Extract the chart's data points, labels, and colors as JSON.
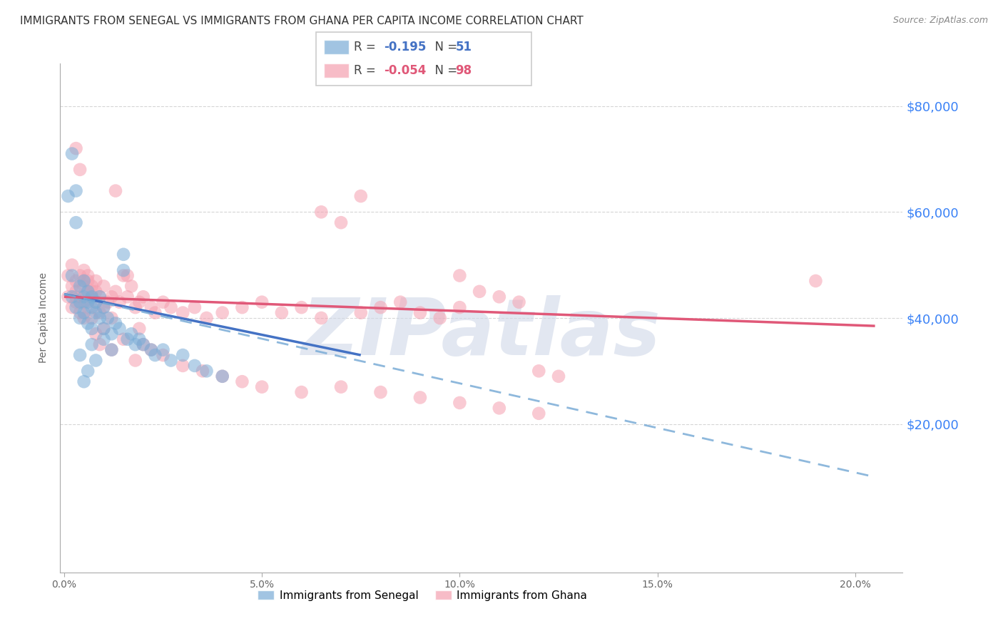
{
  "title": "IMMIGRANTS FROM SENEGAL VS IMMIGRANTS FROM GHANA PER CAPITA INCOME CORRELATION CHART",
  "source": "Source: ZipAtlas.com",
  "ylabel": "Per Capita Income",
  "legend_labels_bottom": [
    "Immigrants from Senegal",
    "Immigrants from Ghana"
  ],
  "y_tick_labels": [
    "$20,000",
    "$40,000",
    "$60,000",
    "$80,000"
  ],
  "y_tick_values": [
    20000,
    40000,
    60000,
    80000
  ],
  "y_tick_color": "#3b82f6",
  "x_tick_labels": [
    "0.0%",
    "5.0%",
    "10.0%",
    "15.0%",
    "20.0%"
  ],
  "x_tick_values": [
    0.0,
    0.05,
    0.1,
    0.15,
    0.2
  ],
  "xlim": [
    -0.001,
    0.212
  ],
  "ylim": [
    -8000,
    88000
  ],
  "background_color": "#ffffff",
  "grid_color": "#cccccc",
  "watermark": "ZIPatlas",
  "watermark_color": "#d0d8e8",
  "senegal_color": "#7aacd6",
  "ghana_color": "#f5a0b0",
  "title_fontsize": 11,
  "source_fontsize": 9,
  "senegal_line_color": "#4472c4",
  "ghana_line_color": "#e05878",
  "dashed_line_color": "#7aacd6",
  "senegal_scatter": {
    "x": [
      0.001,
      0.002,
      0.002,
      0.003,
      0.003,
      0.004,
      0.004,
      0.004,
      0.005,
      0.005,
      0.005,
      0.006,
      0.006,
      0.006,
      0.007,
      0.007,
      0.007,
      0.008,
      0.008,
      0.009,
      0.009,
      0.01,
      0.01,
      0.011,
      0.012,
      0.013,
      0.014,
      0.015,
      0.016,
      0.017,
      0.018,
      0.019,
      0.02,
      0.022,
      0.023,
      0.025,
      0.027,
      0.03,
      0.033,
      0.036,
      0.04,
      0.002,
      0.003,
      0.004,
      0.005,
      0.006,
      0.007,
      0.008,
      0.01,
      0.012,
      0.015
    ],
    "y": [
      63000,
      44000,
      48000,
      64000,
      42000,
      43000,
      46000,
      40000,
      44000,
      47000,
      41000,
      45000,
      43000,
      39000,
      44000,
      42000,
      38000,
      43000,
      41000,
      44000,
      40000,
      42000,
      38000,
      40000,
      37000,
      39000,
      38000,
      52000,
      36000,
      37000,
      35000,
      36000,
      35000,
      34000,
      33000,
      34000,
      32000,
      33000,
      31000,
      30000,
      29000,
      71000,
      58000,
      33000,
      28000,
      30000,
      35000,
      32000,
      36000,
      34000,
      49000
    ]
  },
  "ghana_scatter": {
    "x": [
      0.001,
      0.001,
      0.002,
      0.002,
      0.002,
      0.003,
      0.003,
      0.003,
      0.003,
      0.004,
      0.004,
      0.004,
      0.005,
      0.005,
      0.005,
      0.005,
      0.006,
      0.006,
      0.006,
      0.007,
      0.007,
      0.007,
      0.008,
      0.008,
      0.008,
      0.009,
      0.009,
      0.01,
      0.01,
      0.011,
      0.012,
      0.012,
      0.013,
      0.014,
      0.015,
      0.016,
      0.017,
      0.018,
      0.019,
      0.02,
      0.022,
      0.023,
      0.025,
      0.027,
      0.03,
      0.033,
      0.036,
      0.04,
      0.045,
      0.05,
      0.055,
      0.06,
      0.065,
      0.07,
      0.075,
      0.08,
      0.085,
      0.09,
      0.095,
      0.1,
      0.003,
      0.004,
      0.005,
      0.006,
      0.007,
      0.008,
      0.009,
      0.01,
      0.012,
      0.015,
      0.018,
      0.02,
      0.025,
      0.03,
      0.035,
      0.04,
      0.045,
      0.05,
      0.06,
      0.07,
      0.08,
      0.09,
      0.1,
      0.11,
      0.12,
      0.013,
      0.016,
      0.019,
      0.022,
      0.1,
      0.105,
      0.11,
      0.115,
      0.12,
      0.125,
      0.19,
      0.065,
      0.075
    ],
    "y": [
      48000,
      44000,
      46000,
      50000,
      42000,
      44000,
      47000,
      43000,
      45000,
      44000,
      48000,
      41000,
      46000,
      43000,
      47000,
      40000,
      45000,
      42000,
      48000,
      44000,
      46000,
      40000,
      45000,
      43000,
      47000,
      44000,
      41000,
      46000,
      42000,
      43000,
      44000,
      40000,
      45000,
      43000,
      48000,
      44000,
      46000,
      42000,
      43000,
      44000,
      42000,
      41000,
      43000,
      42000,
      41000,
      42000,
      40000,
      41000,
      42000,
      43000,
      41000,
      42000,
      40000,
      58000,
      41000,
      42000,
      43000,
      41000,
      40000,
      42000,
      72000,
      68000,
      49000,
      47000,
      45000,
      37000,
      35000,
      38000,
      34000,
      36000,
      32000,
      35000,
      33000,
      31000,
      30000,
      29000,
      28000,
      27000,
      26000,
      27000,
      26000,
      25000,
      24000,
      23000,
      22000,
      64000,
      48000,
      38000,
      34000,
      48000,
      45000,
      44000,
      43000,
      30000,
      29000,
      47000,
      60000,
      63000
    ]
  },
  "senegal_line": {
    "x0": 0.0,
    "y0": 44500,
    "x1": 0.075,
    "y1": 33000
  },
  "ghana_line": {
    "x0": 0.0,
    "y0": 44000,
    "x1": 0.205,
    "y1": 38500
  },
  "dashed_line": {
    "x0": 0.0,
    "y0": 44500,
    "x1": 0.205,
    "y1": 10000
  }
}
